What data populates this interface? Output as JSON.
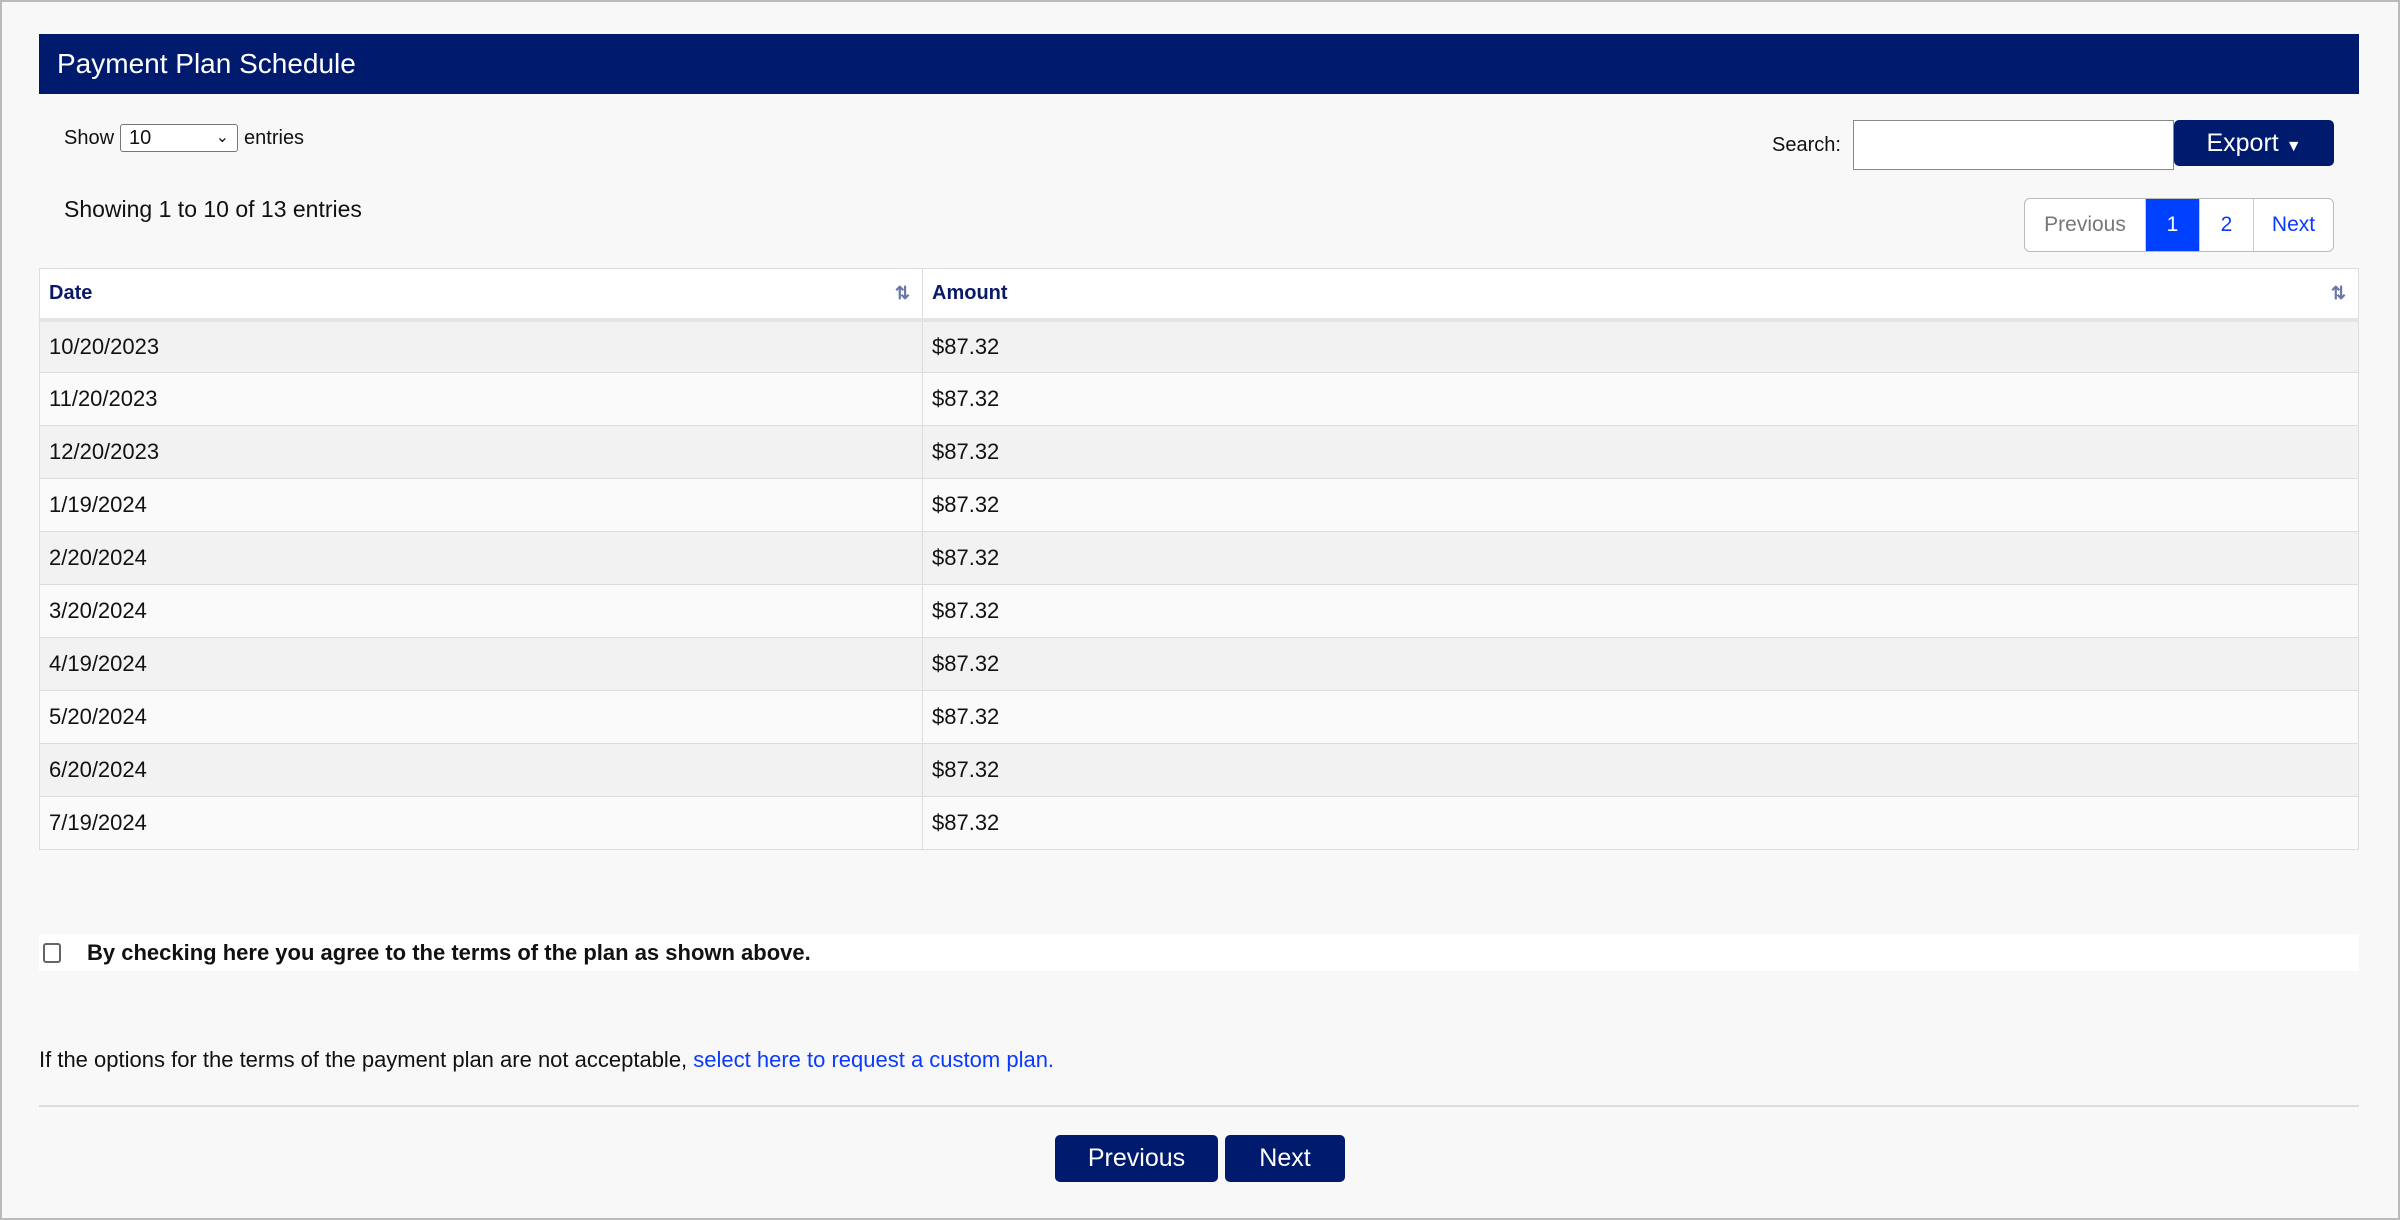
{
  "header": {
    "title": "Payment Plan Schedule"
  },
  "length": {
    "show_label": "Show",
    "value": "10",
    "entries_label": "entries"
  },
  "info": "Showing 1 to 10 of 13 entries",
  "search": {
    "label": "Search:",
    "value": "",
    "placeholder": ""
  },
  "export_label": "Export",
  "pagination": {
    "previous": "Previous",
    "pages": [
      "1",
      "2"
    ],
    "current": "1",
    "next": "Next"
  },
  "table": {
    "columns": [
      "Date",
      "Amount"
    ],
    "rows": [
      [
        "10/20/2023",
        "$87.32"
      ],
      [
        "11/20/2023",
        "$87.32"
      ],
      [
        "12/20/2023",
        "$87.32"
      ],
      [
        "1/19/2024",
        "$87.32"
      ],
      [
        "2/20/2024",
        "$87.32"
      ],
      [
        "3/20/2024",
        "$87.32"
      ],
      [
        "4/19/2024",
        "$87.32"
      ],
      [
        "5/20/2024",
        "$87.32"
      ],
      [
        "6/20/2024",
        "$87.32"
      ],
      [
        "7/19/2024",
        "$87.32"
      ]
    ]
  },
  "agree": {
    "label": "By checking here you agree to the terms of the plan as shown above.",
    "checked": false
  },
  "custom": {
    "text": "If the options for the terms of the payment plan are not acceptable, ",
    "link": "select here to request a custom plan."
  },
  "nav": {
    "previous": "Previous",
    "next": "Next"
  },
  "colors": {
    "primary": "#001a6e",
    "active_page": "#0041ff",
    "link": "#0b3aff"
  }
}
